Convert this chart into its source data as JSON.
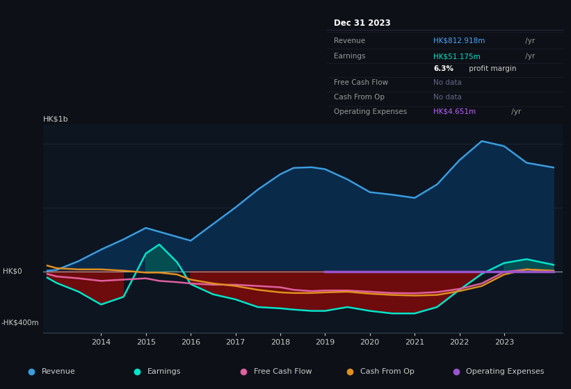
{
  "bg_color": "#0d1117",
  "plot_bg_color": "#0d1520",
  "title_box": {
    "date": "Dec 31 2023",
    "revenue_label": "Revenue",
    "revenue_value": "HK$812.918m",
    "revenue_suffix": " /yr",
    "revenue_color": "#4da6ff",
    "earnings_label": "Earnings",
    "earnings_value": "HK$51.175m",
    "earnings_suffix": " /yr",
    "earnings_color": "#00e5cc",
    "margin_bold": "6.3%",
    "margin_rest": " profit margin",
    "fcf_label": "Free Cash Flow",
    "fcf_value": "No data",
    "cfop_label": "Cash From Op",
    "cfop_value": "No data",
    "opex_label": "Operating Expenses",
    "opex_value": "HK$4.651m",
    "opex_suffix": " /yr",
    "opex_color": "#bf5fff",
    "nodata_color": "#666688"
  },
  "ylabel_top": "HK$1b",
  "ylabel_zero": "HK$0",
  "ylabel_bottom": "-HK$400m",
  "xlim": [
    2012.7,
    2024.3
  ],
  "ylim": [
    -480,
    1150
  ],
  "xticks": [
    2014,
    2015,
    2016,
    2017,
    2018,
    2019,
    2020,
    2021,
    2022,
    2023
  ],
  "years": [
    2012.8,
    2013.0,
    2013.5,
    2014.0,
    2014.5,
    2015.0,
    2015.3,
    2015.7,
    2016.0,
    2016.5,
    2017.0,
    2017.5,
    2018.0,
    2018.3,
    2018.7,
    2019.0,
    2019.5,
    2020.0,
    2020.5,
    2021.0,
    2021.5,
    2022.0,
    2022.5,
    2023.0,
    2023.5,
    2024.1
  ],
  "revenue": [
    5,
    10,
    80,
    170,
    250,
    340,
    310,
    270,
    240,
    370,
    500,
    640,
    760,
    810,
    815,
    800,
    720,
    620,
    600,
    575,
    680,
    870,
    1020,
    980,
    850,
    813
  ],
  "earnings": [
    -50,
    -90,
    -160,
    -260,
    -200,
    140,
    210,
    70,
    -100,
    -180,
    -220,
    -280,
    -290,
    -300,
    -310,
    -310,
    -280,
    -310,
    -330,
    -330,
    -280,
    -145,
    -20,
    65,
    95,
    51
  ],
  "free_cash_flow": [
    -20,
    -40,
    -55,
    -75,
    -65,
    -55,
    -75,
    -85,
    -95,
    -105,
    -105,
    -115,
    -125,
    -145,
    -155,
    -150,
    -150,
    -160,
    -170,
    -172,
    -163,
    -138,
    -95,
    -5,
    15,
    0
  ],
  "cash_from_op": [
    45,
    25,
    15,
    15,
    5,
    -10,
    -10,
    -25,
    -65,
    -95,
    -115,
    -145,
    -165,
    -170,
    -170,
    -165,
    -160,
    -175,
    -185,
    -190,
    -185,
    -155,
    -115,
    -25,
    15,
    5
  ],
  "opex_years": [
    2019.0,
    2019.5,
    2020.0,
    2020.5,
    2021.0,
    2021.5,
    2022.0,
    2022.5,
    2023.0,
    2023.5,
    2024.1
  ],
  "opex_vals": [
    -5,
    -5,
    -5,
    -5,
    -5,
    -5,
    -5,
    -5,
    -5,
    -5,
    -5
  ],
  "revenue_color": "#3a9de0",
  "revenue_fill": "#0a2a4a",
  "earnings_color": "#00e5cc",
  "free_cash_flow_color": "#e060a0",
  "cash_from_op_color": "#e09020",
  "operating_expenses_color": "#9955cc",
  "legend_bg": "#131828",
  "legend_border": "#2a2a4a",
  "text_color": "#cccccc",
  "axis_line_color": "#cccccc",
  "grid_color": "#1e2a3a",
  "zero_line_color": "#aaaaaa"
}
